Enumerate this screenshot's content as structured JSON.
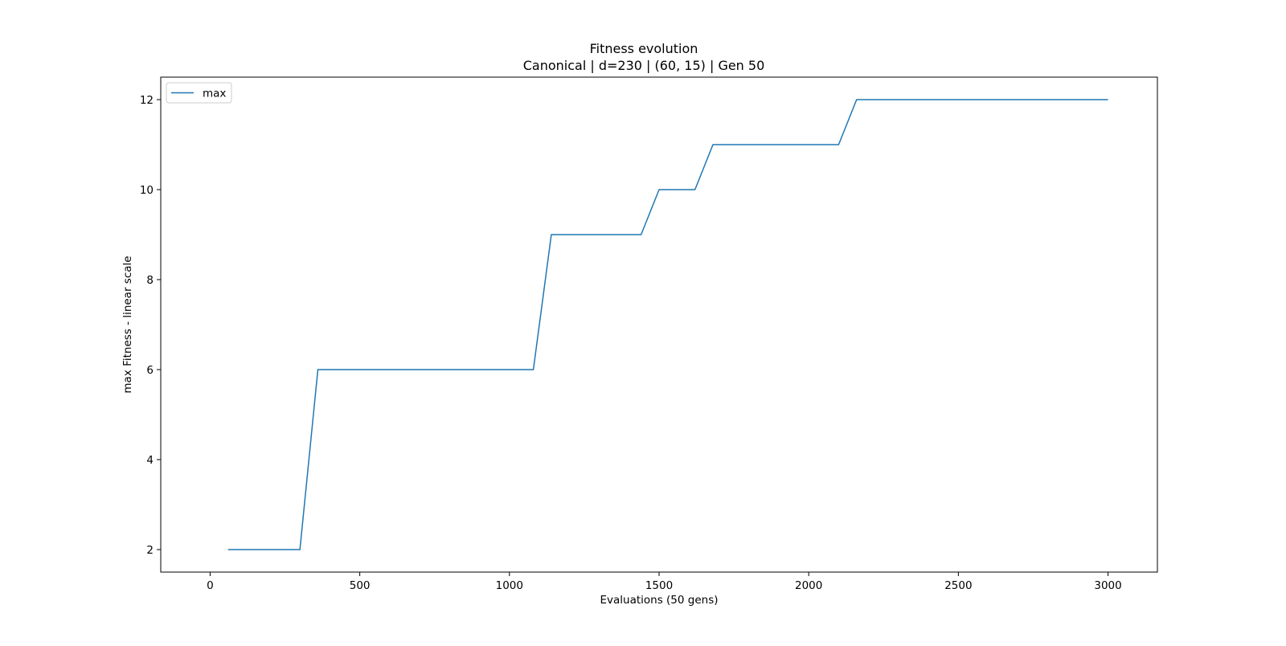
{
  "chart_data": {
    "type": "line",
    "title": "Fitness evolution",
    "subtitle": "Canonical | d=230 | (60, 15) | Gen 50",
    "xlabel": "Evaluations (50 gens)",
    "ylabel": "max Fitness - linear scale",
    "xlim": [
      -165,
      3165
    ],
    "ylim": [
      1.5,
      12.5
    ],
    "x_ticks": [
      0,
      500,
      1000,
      1500,
      2000,
      2500,
      3000
    ],
    "y_ticks": [
      2,
      4,
      6,
      8,
      10,
      12
    ],
    "grid": false,
    "legend": "top-left",
    "series": [
      {
        "name": "max",
        "color": "#1f77b4",
        "x": [
          60,
          120,
          180,
          240,
          300,
          360,
          420,
          480,
          540,
          600,
          660,
          720,
          780,
          840,
          900,
          960,
          1020,
          1080,
          1140,
          1200,
          1260,
          1320,
          1380,
          1440,
          1500,
          1560,
          1620,
          1680,
          1740,
          1800,
          1860,
          1920,
          1980,
          2040,
          2100,
          2160,
          2220,
          2280,
          2340,
          2400,
          2460,
          2520,
          2580,
          2640,
          2700,
          2760,
          2820,
          2880,
          2940,
          3000
        ],
        "values": [
          2,
          2,
          2,
          2,
          2,
          6,
          6,
          6,
          6,
          6,
          6,
          6,
          6,
          6,
          6,
          6,
          6,
          6,
          9,
          9,
          9,
          9,
          9,
          9,
          10,
          10,
          10,
          11,
          11,
          11,
          11,
          11,
          11,
          11,
          11,
          12,
          12,
          12,
          12,
          12,
          12,
          12,
          12,
          12,
          12,
          12,
          12,
          12,
          12,
          12
        ]
      }
    ]
  }
}
